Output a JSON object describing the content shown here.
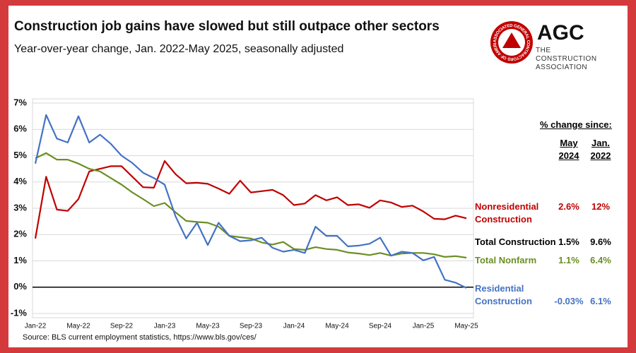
{
  "chart_data": {
    "type": "line",
    "title": "Construction job gains have slowed but still outpace other sectors",
    "subtitle": "Year-over-year change, Jan. 2022-May 2025, seasonally adjusted",
    "source": "Source: BLS current employment statistics, https://www.bls.gov/ces/",
    "logo": {
      "ring": "ASSOCIATED GENERAL CONTRACTORS OF AMERICA",
      "text": "AGC",
      "tagline": "THE CONSTRUCTION ASSOCIATION"
    },
    "categories": [
      "Jan-22",
      null,
      null,
      null,
      "May-22",
      null,
      null,
      null,
      "Sep-22",
      null,
      null,
      null,
      "Jan-23",
      null,
      null,
      null,
      "May-23",
      null,
      null,
      null,
      "Sep-23",
      null,
      null,
      null,
      "Jan-24",
      null,
      null,
      null,
      "May-24",
      null,
      null,
      null,
      "Sep-24",
      null,
      null,
      null,
      "Jan-25",
      null,
      null,
      null,
      "May-25"
    ],
    "ylim": [
      -1,
      7
    ],
    "yticks": [
      {
        "value": -1,
        "label": "-1%"
      },
      {
        "value": 0,
        "label": "0%"
      },
      {
        "value": 1,
        "label": "1%"
      },
      {
        "value": 2,
        "label": "2%"
      },
      {
        "value": 3,
        "label": "3%"
      },
      {
        "value": 4,
        "label": "4%"
      },
      {
        "value": 5,
        "label": "5%"
      },
      {
        "value": 6,
        "label": "6%"
      },
      {
        "value": 7,
        "label": "7%"
      }
    ],
    "grid": true,
    "table_title": "% change since:",
    "table_columns": [
      "May 2024",
      "Jan. 2022"
    ],
    "series": [
      {
        "name": "Nonresidential Construction",
        "color": "#c00000",
        "changes": [
          "2.6%",
          "12%"
        ],
        "values": [
          1.85,
          4.2,
          2.95,
          2.9,
          3.35,
          4.4,
          4.5,
          4.6,
          4.6,
          4.2,
          3.8,
          3.78,
          4.8,
          4.3,
          3.95,
          3.97,
          3.93,
          3.75,
          3.55,
          4.05,
          3.6,
          3.65,
          3.7,
          3.5,
          3.12,
          3.18,
          3.5,
          3.3,
          3.42,
          3.12,
          3.15,
          3.02,
          3.3,
          3.22,
          3.05,
          3.1,
          2.88,
          2.6,
          2.58,
          2.72,
          2.62
        ]
      },
      {
        "name": "Total Nonfarm",
        "color": "#6b8e23",
        "changes": [
          "1.1%",
          "6.4%"
        ],
        "values": [
          4.9,
          5.1,
          4.85,
          4.85,
          4.7,
          4.5,
          4.4,
          4.15,
          3.9,
          3.6,
          3.35,
          3.08,
          3.2,
          2.85,
          2.52,
          2.48,
          2.45,
          2.3,
          1.95,
          1.9,
          1.85,
          1.7,
          1.62,
          1.72,
          1.45,
          1.42,
          1.52,
          1.45,
          1.42,
          1.32,
          1.28,
          1.22,
          1.3,
          1.2,
          1.28,
          1.3,
          1.3,
          1.25,
          1.15,
          1.18,
          1.12
        ]
      },
      {
        "name": "Residential Construction",
        "color": "#4472c4",
        "changes": [
          "-0.03%",
          "6.1%"
        ],
        "values": [
          4.7,
          6.55,
          5.65,
          5.5,
          6.5,
          5.5,
          5.8,
          5.45,
          5.0,
          4.72,
          4.35,
          4.15,
          3.9,
          2.7,
          1.85,
          2.45,
          1.6,
          2.45,
          1.95,
          1.75,
          1.78,
          1.88,
          1.5,
          1.35,
          1.42,
          1.3,
          2.3,
          1.95,
          1.95,
          1.55,
          1.58,
          1.65,
          1.88,
          1.2,
          1.35,
          1.3,
          1.02,
          1.15,
          0.28,
          0.17,
          -0.03
        ]
      }
    ],
    "other_rows": [
      {
        "name": "Total Construction",
        "color": "#000000",
        "changes": [
          "1.5%",
          "9.6%"
        ]
      }
    ]
  }
}
